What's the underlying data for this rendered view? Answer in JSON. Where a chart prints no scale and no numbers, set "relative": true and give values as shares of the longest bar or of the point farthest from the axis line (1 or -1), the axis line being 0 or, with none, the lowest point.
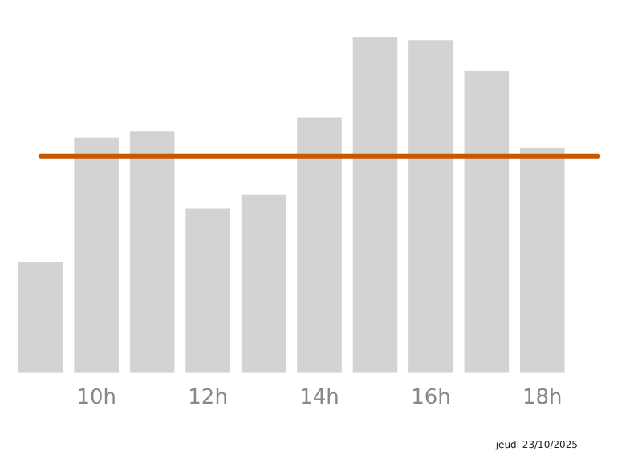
{
  "chart_data": {
    "type": "bar",
    "relative": true,
    "categories": [
      null,
      "10h",
      null,
      "12h",
      null,
      "14h",
      null,
      "16h",
      null,
      "18h",
      null
    ],
    "values": [
      0.33,
      0.7,
      0.72,
      0.49,
      0.53,
      0.76,
      1,
      0.99,
      0.9,
      0.67,
      0
    ],
    "color": "#d3d3d3",
    "ref_lines": [
      {
        "axis": "y",
        "value": 0.645,
        "color": "#cc5500"
      }
    ],
    "annotations": [
      "jeudi 23/10/2025"
    ],
    "grid": false,
    "legend": false
  }
}
